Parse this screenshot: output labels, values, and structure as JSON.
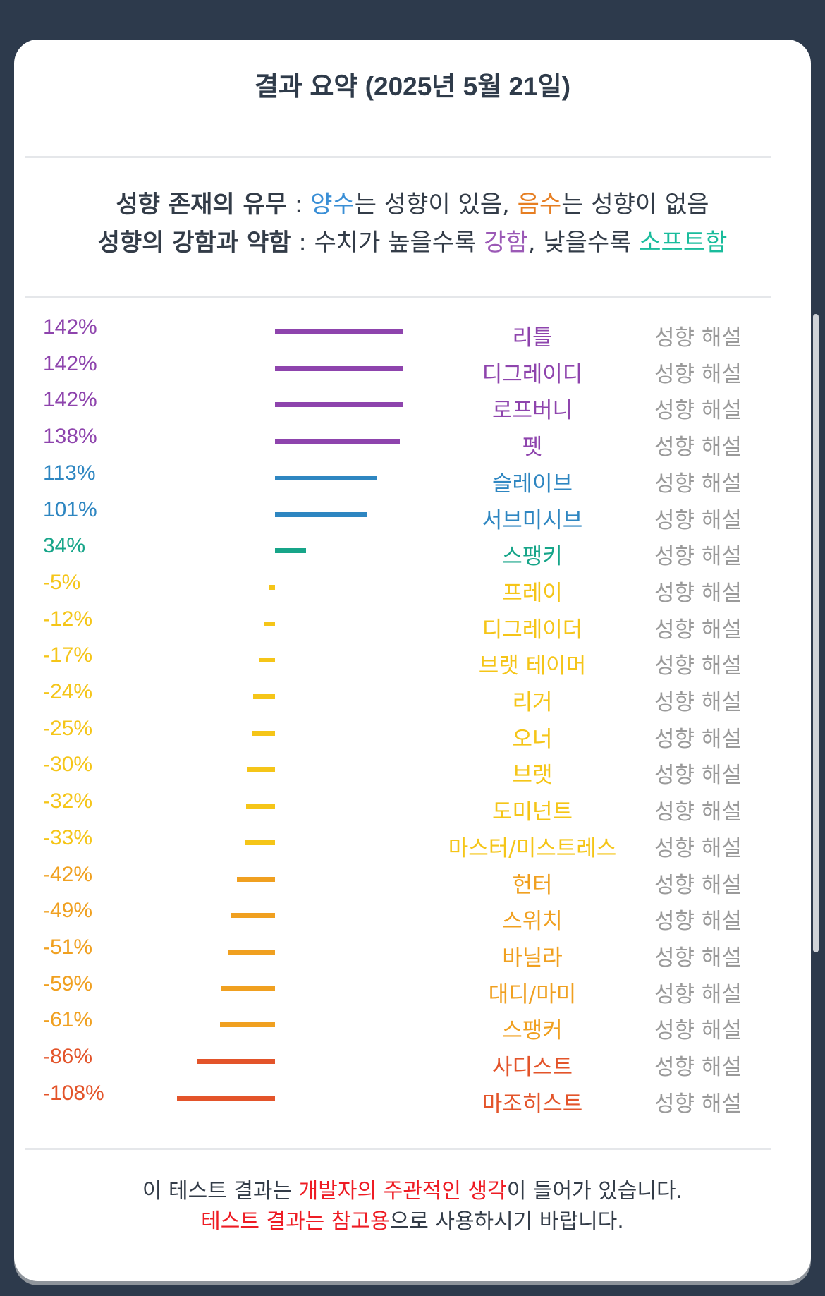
{
  "title": "결과 요약 (2025년 5월 21일)",
  "legend": {
    "line1": {
      "key": "성향 존재의 유무",
      "sep": " : ",
      "positive": "양수",
      "t1": "는 성향이 있음, ",
      "negative": "음수",
      "t2": "는 성향이 없음"
    },
    "line2": {
      "key": "성향의 강함과 약함",
      "sep": " : ",
      "t1": "수치가 높을수록 ",
      "strong": "강함",
      "t2": ", 낮을수록 ",
      "soft": "소프트함"
    }
  },
  "desc_label": "성향 해설",
  "colors": {
    "positive_label": "#3a8fd6",
    "negative_label": "#e67e22",
    "strong_label": "#9b59b6",
    "soft_label": "#1abc9c"
  },
  "chart_data": {
    "type": "bar",
    "orientation": "horizontal",
    "baseline": 0,
    "xlim": [
      -108,
      142
    ],
    "categories": [
      "리틀",
      "디그레이디",
      "로프버니",
      "펫",
      "슬레이브",
      "서브미시브",
      "스팽키",
      "프레이",
      "디그레이더",
      "브랫 테이머",
      "리거",
      "오너",
      "브랫",
      "도미넌트",
      "마스터/미스트레스",
      "헌터",
      "스위치",
      "바닐라",
      "대디/마미",
      "스팽커",
      "사디스트",
      "마조히스트"
    ],
    "values": [
      142,
      142,
      142,
      138,
      113,
      101,
      34,
      -5,
      -12,
      -17,
      -24,
      -25,
      -30,
      -32,
      -33,
      -42,
      -49,
      -51,
      -59,
      -61,
      -86,
      -108
    ],
    "labels": [
      "142%",
      "142%",
      "142%",
      "138%",
      "113%",
      "101%",
      "34%",
      "-5%",
      "-12%",
      "-17%",
      "-24%",
      "-25%",
      "-30%",
      "-32%",
      "-33%",
      "-42%",
      "-49%",
      "-51%",
      "-59%",
      "-61%",
      "-86%",
      "-108%"
    ],
    "colors": [
      "#8e44ad",
      "#8e44ad",
      "#8e44ad",
      "#8e44ad",
      "#2e86c1",
      "#2e86c1",
      "#17a589",
      "#f5c518",
      "#f5c518",
      "#f5c518",
      "#f5c518",
      "#f5c518",
      "#f5c518",
      "#f5c518",
      "#f5c518",
      "#f0a020",
      "#f0a020",
      "#f0a020",
      "#f0a020",
      "#f0a020",
      "#e3542a",
      "#e3542a"
    ],
    "grid": false
  },
  "footer": {
    "line1_a": "이 테스트 결과는 ",
    "line1_b": "개발자의 주관적인 생각",
    "line1_c": "이 들어가 있습니다.",
    "line2_a": "테스트 결과는 참고용",
    "line2_b": "으로 사용하시기 바랍니다."
  }
}
